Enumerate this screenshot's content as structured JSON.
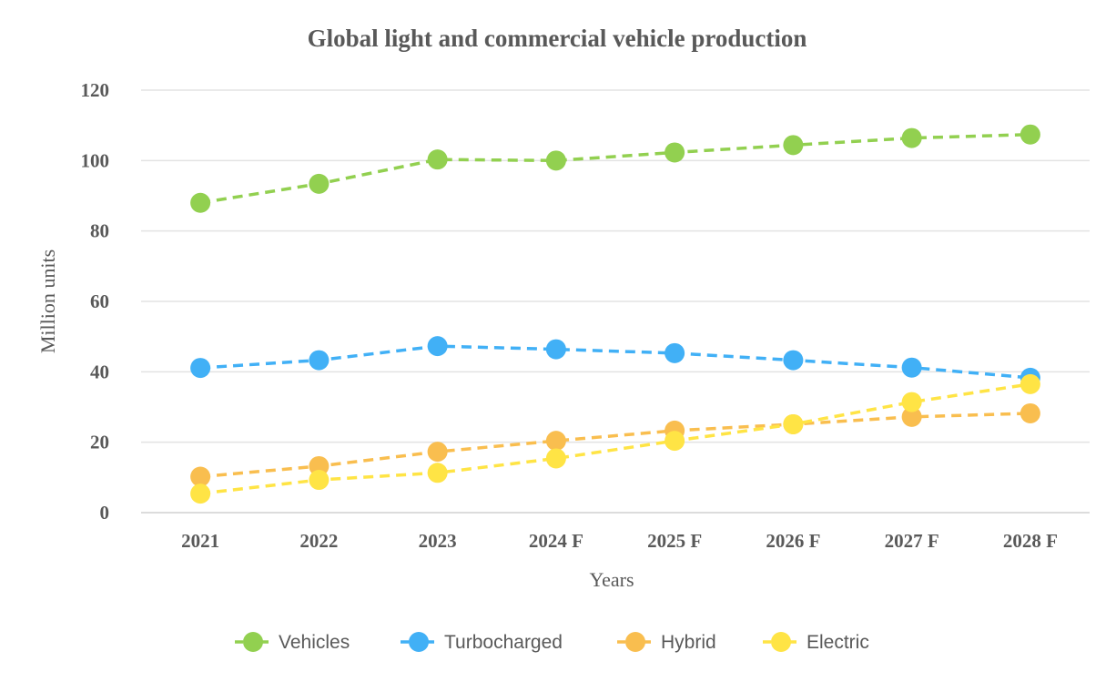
{
  "chart_data": {
    "type": "line",
    "title": "Global light and commercial vehicle production",
    "xlabel": "Years",
    "ylabel": "Million units",
    "categories": [
      "2021",
      "2022",
      "2023",
      "2024 F",
      "2025 F",
      "2026 F",
      "2027 F",
      "2028 F"
    ],
    "ylim": [
      0,
      120
    ],
    "yticks": [
      0,
      20,
      40,
      60,
      80,
      100,
      120
    ],
    "grid": true,
    "legend_position": "bottom",
    "series": [
      {
        "name": "Vehicles",
        "color": "#92D050",
        "values": [
          88,
          93.4,
          100.3,
          100,
          102.3,
          104.4,
          106.4,
          107.4
        ]
      },
      {
        "name": "Turbocharged",
        "color": "#41B0F6",
        "values": [
          41.1,
          43.3,
          47.3,
          46.4,
          45.3,
          43.3,
          41.2,
          38.3
        ]
      },
      {
        "name": "Hybrid",
        "color": "#F9BE4F",
        "values": [
          10.2,
          13.2,
          17.3,
          20.4,
          23.3,
          25.1,
          27.2,
          28.2
        ]
      },
      {
        "name": "Electric",
        "color": "#FFE445",
        "values": [
          5.4,
          9.3,
          11.3,
          15.4,
          20.4,
          25.1,
          31.4,
          36.5
        ]
      }
    ]
  }
}
